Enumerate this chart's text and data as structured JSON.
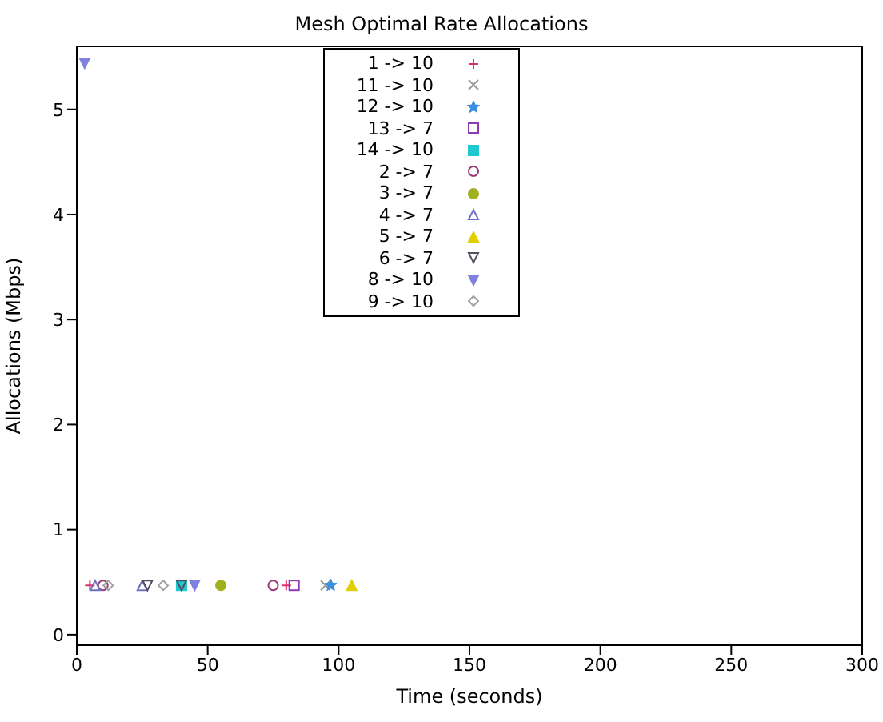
{
  "chart_data": {
    "type": "scatter",
    "title": "Mesh Optimal Rate Allocations",
    "xlabel": "Time (seconds)",
    "ylabel": "Allocations (Mbps)",
    "xlim": [
      0,
      300
    ],
    "xticks": [
      0,
      50,
      100,
      150,
      200,
      250,
      300
    ],
    "ylim": [
      -0.1,
      5.6
    ],
    "yticks": [
      0,
      1,
      2,
      3,
      4,
      5
    ],
    "legend": "top",
    "series": [
      {
        "name": "1 -> 10",
        "color": "#e0306a",
        "marker": "plus",
        "x": [
          5,
          80
        ],
        "values": [
          0.47,
          0.47
        ]
      },
      {
        "name": "11 -> 10",
        "color": "#9a9a9a",
        "marker": "x",
        "x": [
          95
        ],
        "values": [
          0.47
        ]
      },
      {
        "name": "12 -> 10",
        "color": "#3a8fe0",
        "marker": "star",
        "x": [
          97
        ],
        "values": [
          0.47
        ]
      },
      {
        "name": "13 -> 7",
        "color": "#8a3ab0",
        "marker": "square",
        "x": [
          83
        ],
        "values": [
          0.47
        ]
      },
      {
        "name": "14 -> 10",
        "color": "#20c8d0",
        "marker": "square-filled",
        "x": [
          40
        ],
        "values": [
          0.47
        ]
      },
      {
        "name": "2 -> 7",
        "color": "#9a3a7a",
        "marker": "circle",
        "x": [
          10,
          75
        ],
        "values": [
          0.47,
          0.47
        ]
      },
      {
        "name": "3 -> 7",
        "color": "#a0b020",
        "marker": "circle-filled",
        "x": [
          55
        ],
        "values": [
          0.47
        ]
      },
      {
        "name": "4 -> 7",
        "color": "#7070c0",
        "marker": "triangle",
        "x": [
          7,
          25
        ],
        "values": [
          0.47,
          0.47
        ]
      },
      {
        "name": "5 -> 7",
        "color": "#e0d000",
        "marker": "triangle-filled",
        "x": [
          105
        ],
        "values": [
          0.47
        ]
      },
      {
        "name": "6 -> 7",
        "color": "#505060",
        "marker": "triangle-down",
        "x": [
          27,
          40
        ],
        "values": [
          0.47,
          0.47
        ]
      },
      {
        "name": "8 -> 10",
        "color": "#8080e0",
        "marker": "triangle-down-filled",
        "x": [
          3,
          45
        ],
        "values": [
          5.44,
          0.47
        ]
      },
      {
        "name": "9 -> 10",
        "color": "#a0a0a0",
        "marker": "diamond",
        "x": [
          12,
          33
        ],
        "values": [
          0.47,
          0.47
        ]
      }
    ]
  }
}
